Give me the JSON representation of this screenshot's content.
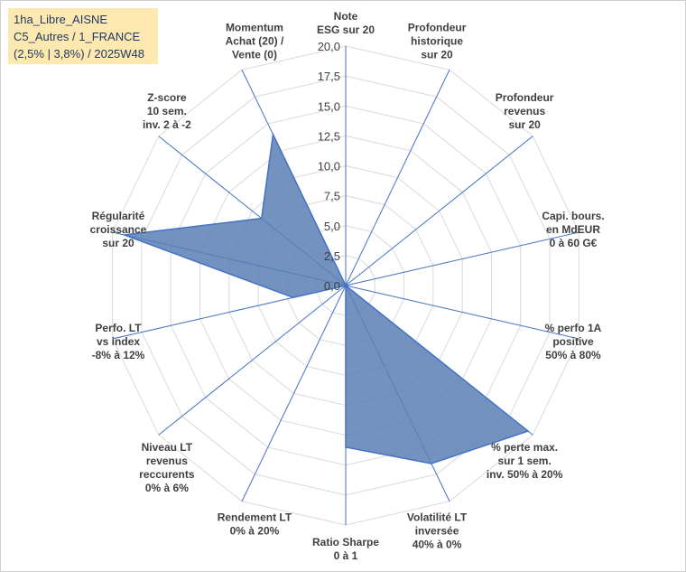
{
  "info": {
    "line1": "1ha_Libre_AISNE",
    "line2": "C5_Autres / 1_FRANCE",
    "line3": "(2,5% | 3,8%) / 2025W48"
  },
  "colors": {
    "fill": "#5b7fb5",
    "line": "#4472c4",
    "grid": "#d9d9d9",
    "axis": "#4472c4"
  },
  "chart_data": {
    "type": "radar",
    "rmax": 20,
    "ticks": [
      "0,0",
      "2,5",
      "5,0",
      "7,5",
      "10,0",
      "12,5",
      "15,0",
      "17,5",
      "20,0"
    ],
    "axes": [
      {
        "label": [
          "Note",
          "ESG sur 20"
        ],
        "value": 0
      },
      {
        "label": [
          "Profondeur",
          "historique",
          "sur 20"
        ],
        "value": 0
      },
      {
        "label": [
          "Profondeur",
          "revenus",
          "sur 20"
        ],
        "value": 0
      },
      {
        "label": [
          "Capi. bours.",
          "en MdEUR",
          "0 à 60 G€"
        ],
        "value": 0
      },
      {
        "label": [
          "% perfo 1A",
          "positive",
          "50% à 80%"
        ],
        "value": 0
      },
      {
        "label": [
          "% perte max.",
          "sur 1 sem.",
          "inv. 50% à 20%"
        ],
        "value": 19.5
      },
      {
        "label": [
          "Volatilité LT",
          "inversée",
          "40% à 0%"
        ],
        "value": 16.5
      },
      {
        "label": [
          "Ratio Sharpe",
          "0 à 1"
        ],
        "value": 13.5
      },
      {
        "label": [
          "Rendement LT",
          "0% à 20%"
        ],
        "value": 0
      },
      {
        "label": [
          "Niveau LT",
          "revenus",
          "reccurents",
          "0% à 6%"
        ],
        "value": 0
      },
      {
        "label": [
          "Perfo. LT",
          "vs index",
          "-8% à 12%"
        ],
        "value": 4.5
      },
      {
        "label": [
          "Régularité",
          "croissance",
          "sur 20"
        ],
        "value": 19
      },
      {
        "label": [
          "Z-score",
          "10 sem.",
          "inv. 2 à -2"
        ],
        "value": 9
      },
      {
        "label": [
          "Momentum",
          "Achat (20) /",
          "Vente (0)"
        ],
        "value": 14
      }
    ]
  }
}
